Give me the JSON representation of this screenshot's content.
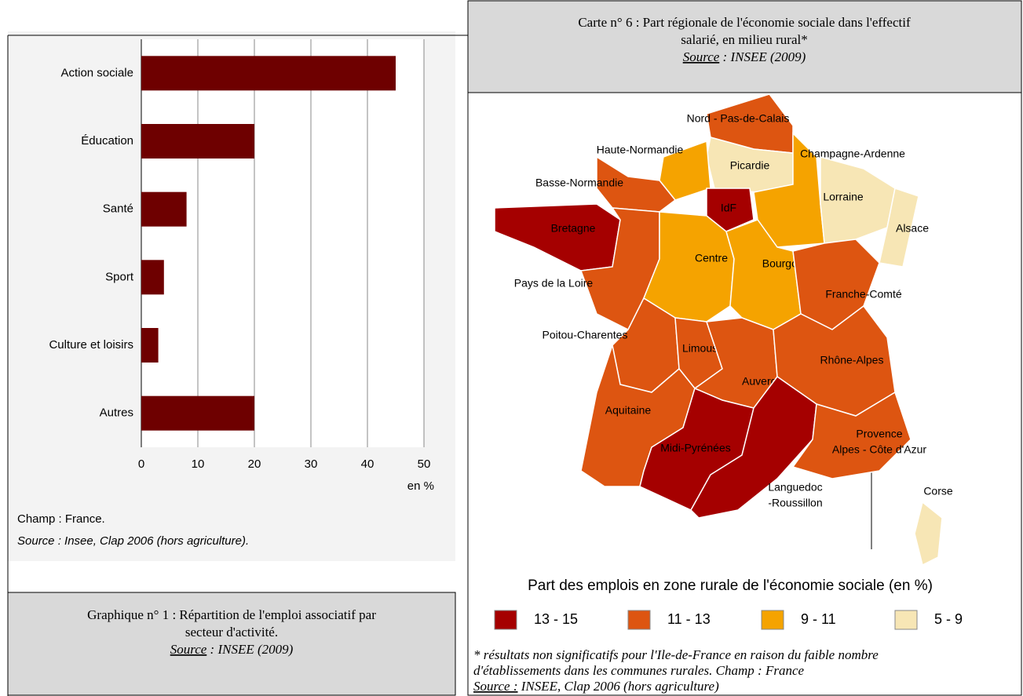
{
  "chart_data": {
    "type": "bar",
    "orientation": "horizontal",
    "categories": [
      "Action sociale",
      "Éducation",
      "Santé",
      "Sport",
      "Culture et loisirs",
      "Autres"
    ],
    "values": [
      45,
      20,
      8,
      4,
      3,
      20
    ],
    "color": "#6e0000",
    "xlim": [
      0,
      50
    ],
    "xticks": [
      0,
      10,
      20,
      30,
      40,
      50
    ],
    "grid": true,
    "x_label": "en %",
    "notes": [
      "Champ : France.",
      "Source : Insee, Clap 2006 (hors agriculture)."
    ]
  },
  "chart_caption": {
    "title": [
      "Graphique n° 1 : Répartition de l'emploi associatif par",
      "secteur d'activité."
    ],
    "source_label": "Source",
    "source_text": " : INSEE (2009)"
  },
  "map": {
    "title": [
      "Carte n° 6 : Part régionale de l'économie sociale dans l'effectif",
      "salarié, en milieu rural*"
    ],
    "source_label": "Source",
    "source_text": " : INSEE (2009)",
    "regions": [
      {
        "label": [
          "Nord - Pas-de-Calais"
        ],
        "class": 1
      },
      {
        "label": [
          "Picardie"
        ],
        "class": 3
      },
      {
        "label": [
          "Haute-Normandie"
        ],
        "class": 2
      },
      {
        "label": [
          "Basse-Normandie"
        ],
        "class": 1
      },
      {
        "label": [
          "IdF"
        ],
        "class": 0
      },
      {
        "label": [
          "Champagne-Ardenne"
        ],
        "class": 2
      },
      {
        "label": [
          "Lorraine"
        ],
        "class": 3
      },
      {
        "label": [
          "Alsace"
        ],
        "class": 3
      },
      {
        "label": [
          "Bretagne"
        ],
        "class": 0
      },
      {
        "label": [
          "Pays de la Loire"
        ],
        "class": 1
      },
      {
        "label": [
          "Centre"
        ],
        "class": 2
      },
      {
        "label": [
          "Bourgogne"
        ],
        "class": 2
      },
      {
        "label": [
          "Franche-Comté"
        ],
        "class": 1
      },
      {
        "label": [
          "Poitou-Charentes"
        ],
        "class": 1
      },
      {
        "label": [
          "Limousin"
        ],
        "class": 1
      },
      {
        "label": [
          "Auvergne"
        ],
        "class": 1
      },
      {
        "label": [
          "Rhône-Alpes"
        ],
        "class": 1
      },
      {
        "label": [
          "Aquitaine"
        ],
        "class": 1
      },
      {
        "label": [
          "Midi-Pyrénées"
        ],
        "class": 0
      },
      {
        "label": [
          "Languedoc",
          "-Roussillon"
        ],
        "class": 0
      },
      {
        "label": [
          "Provence",
          "Alpes - Côte d'Azur"
        ],
        "class": 1
      },
      {
        "label": [
          "Corse"
        ],
        "class": 3
      }
    ],
    "legend": {
      "title": "Part des emplois en zone rurale de l'économie sociale (en %)",
      "classes": [
        {
          "label": "13 - 15",
          "color": "#a50000"
        },
        {
          "label": "11 - 13",
          "color": "#dd5511"
        },
        {
          "label": "9 - 11",
          "color": "#f5a300"
        },
        {
          "label": "5 - 9",
          "color": "#f7e6b5"
        }
      ]
    },
    "footnote": [
      "* résultats non significatifs pour l'Ile-de-France en raison du faible nombre",
      "d'établissements dans les communes rurales. Champ : France"
    ],
    "footnote_source_label": "Source :",
    "footnote_source_text": " INSEE, Clap 2006 (hors agriculture)"
  }
}
